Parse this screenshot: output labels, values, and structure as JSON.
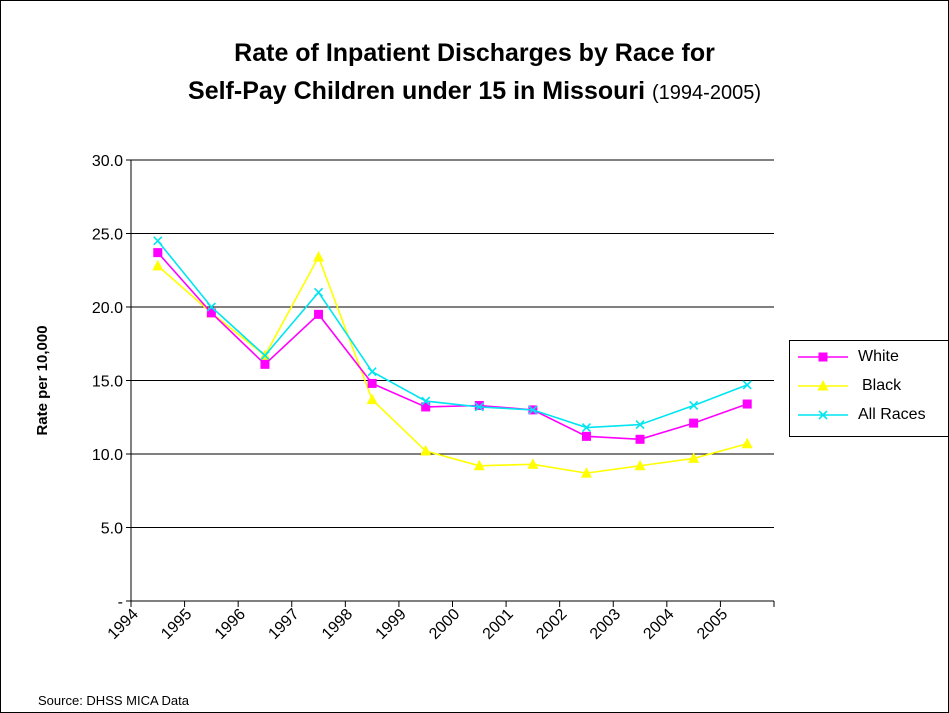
{
  "chart_data": {
    "type": "line",
    "title_main": "Rate of Inpatient Discharges by Race for",
    "title_line2": "Self-Pay Children under 15 in Missouri",
    "title_range": "(1994-2005)",
    "ylabel": "Rate per 10,000",
    "xlabel": "",
    "ylim": [
      0,
      30
    ],
    "yticks": [
      "-",
      "5.0",
      "10.0",
      "15.0",
      "20.0",
      "25.0",
      "30.0"
    ],
    "categories": [
      "1994",
      "1995",
      "1996",
      "1997",
      "1998",
      "1999",
      "2000",
      "2001",
      "2002",
      "2003",
      "2004",
      "2005"
    ],
    "series": [
      {
        "name": "White",
        "color": "#FF00FF",
        "marker": "square",
        "values": [
          23.7,
          19.6,
          16.1,
          19.5,
          14.8,
          13.2,
          13.3,
          13.0,
          11.2,
          11.0,
          12.1,
          13.4
        ]
      },
      {
        "name": "Black",
        "color": "#FFFF00",
        "marker": "triangle",
        "values": [
          22.8,
          19.6,
          16.7,
          23.4,
          13.7,
          10.2,
          9.2,
          9.3,
          8.7,
          9.2,
          9.7,
          10.7
        ]
      },
      {
        "name": "All Races",
        "color": "#00E5F0",
        "marker": "x",
        "values": [
          24.5,
          20.0,
          16.7,
          21.0,
          15.6,
          13.6,
          13.2,
          13.0,
          11.8,
          12.0,
          13.3,
          14.7
        ]
      }
    ],
    "grid": true,
    "legend_position": "right"
  },
  "source_note": "Source: DHSS MICA Data"
}
